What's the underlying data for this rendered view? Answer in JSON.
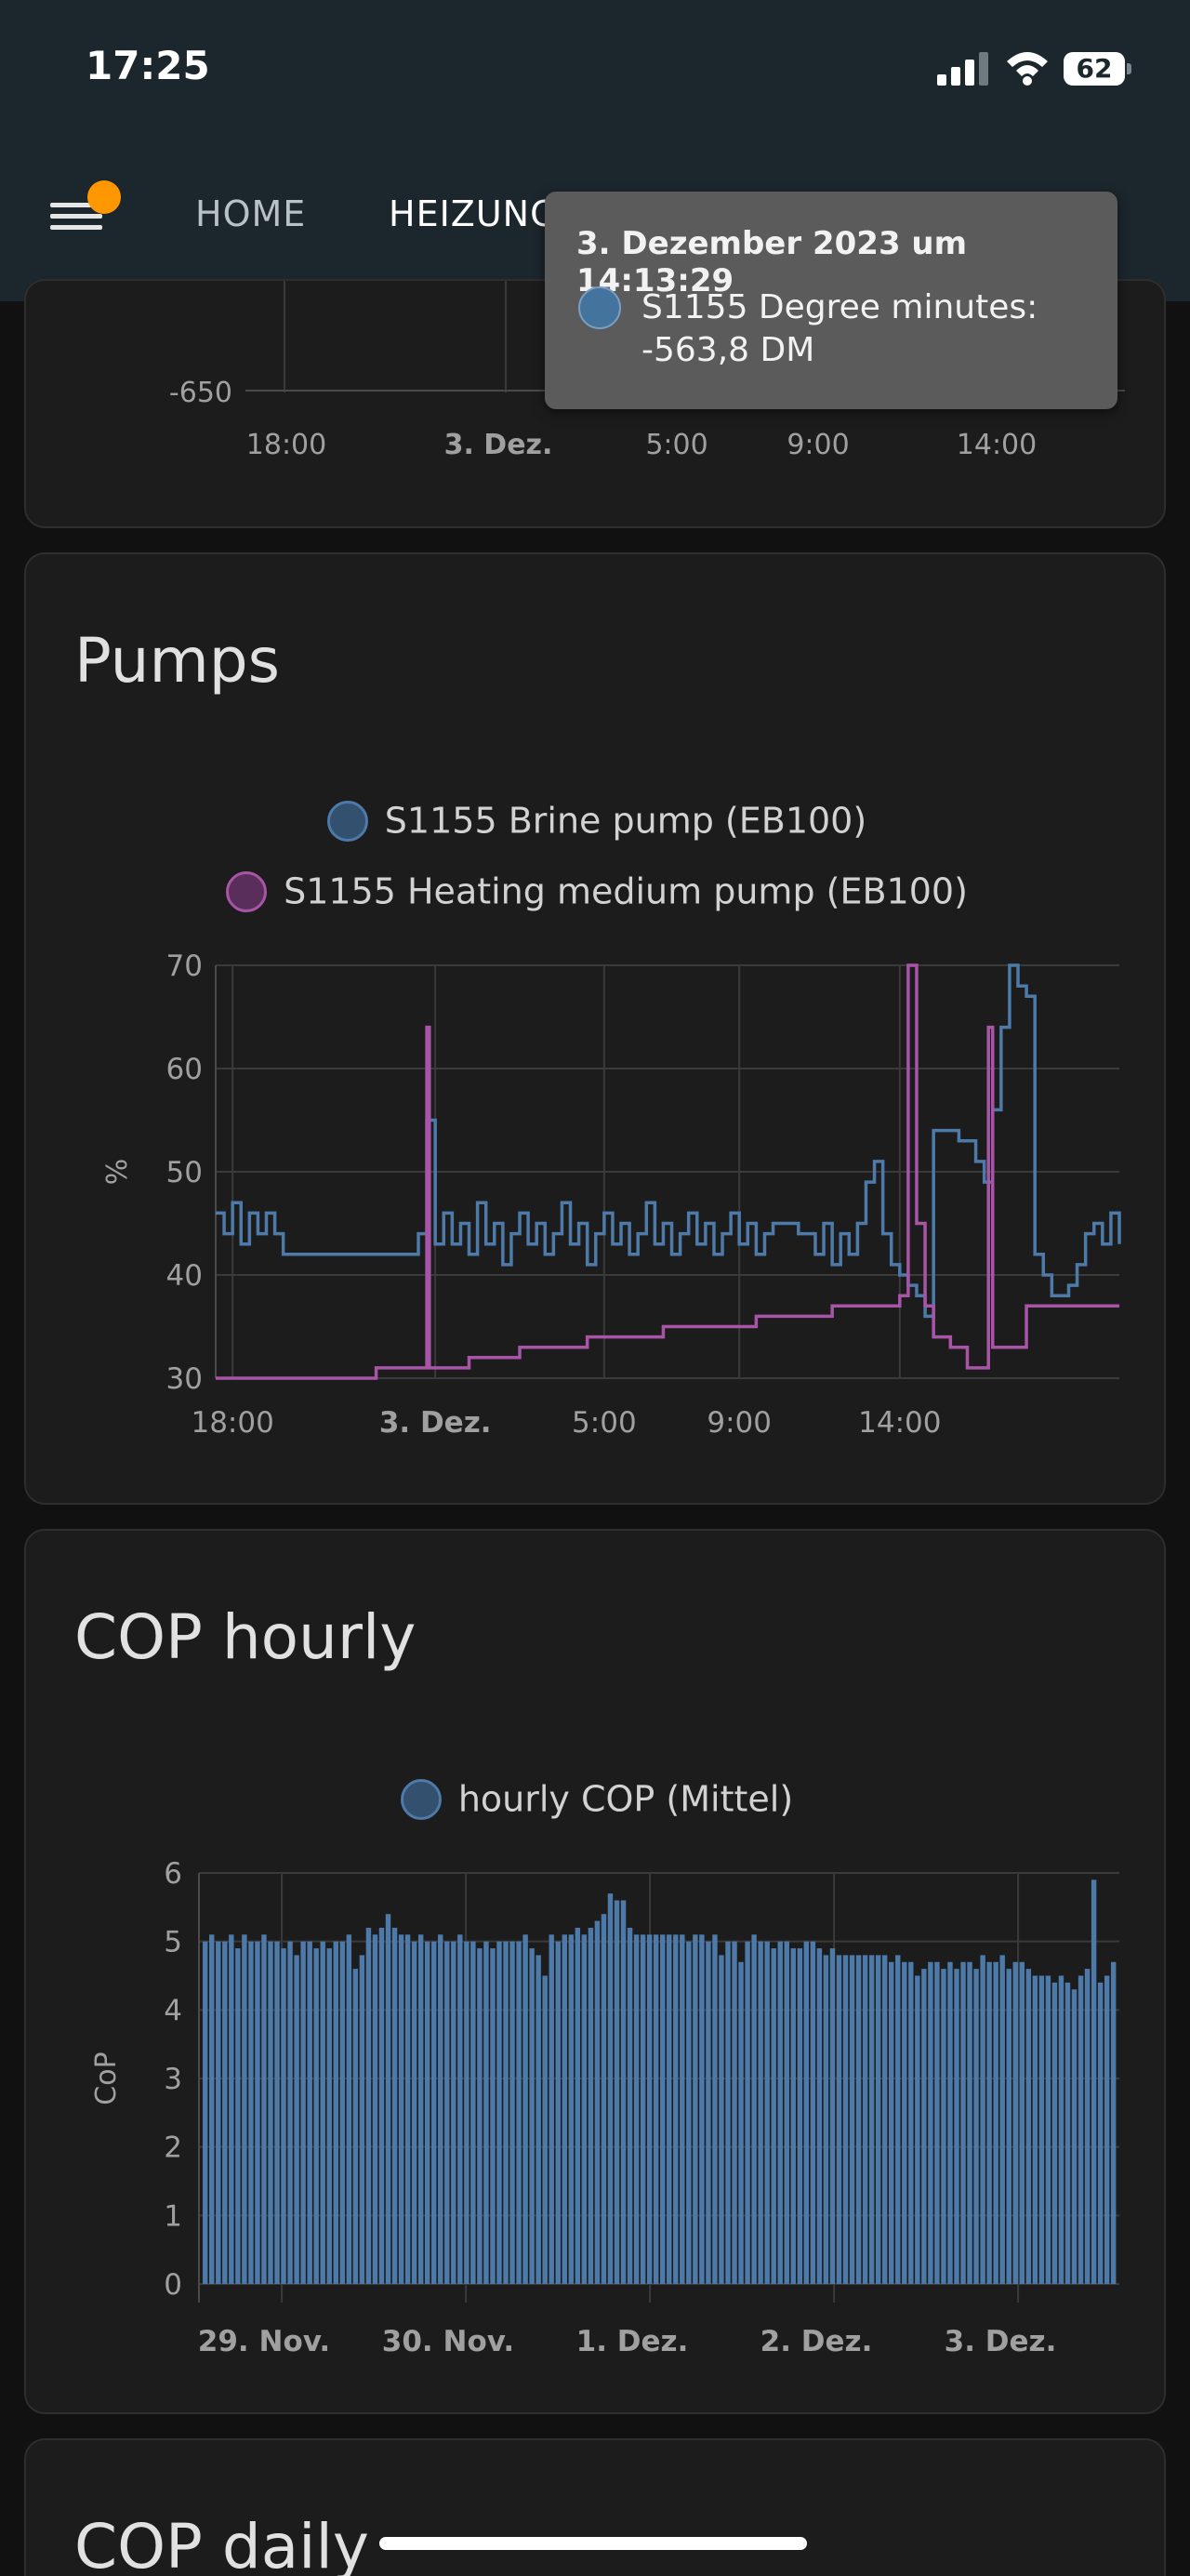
{
  "status": {
    "time": "17:25",
    "battery": "62"
  },
  "appbar": {
    "tabs": [
      {
        "label": "HOME"
      },
      {
        "label": "HEIZUNG"
      }
    ],
    "menu_badge_color": "#ff9800"
  },
  "colors": {
    "brine": "#4d7aa8",
    "heating": "#a855a8",
    "cop": "#4d7aa8",
    "card_bg": "#1c1c1c",
    "grid": "#3a3a3a"
  },
  "prev_card": {
    "y_tick": "-650",
    "x_ticks": [
      "18:00",
      "3. Dez.",
      "5:00",
      "9:00",
      "14:00"
    ]
  },
  "tooltip": {
    "title": "3. Dezember 2023 um 14:13:29",
    "series": "S1155 Degree minutes:",
    "value": "-563,8 DM"
  },
  "pumps_card": {
    "title": "Pumps"
  },
  "cop_hourly_card": {
    "title": "COP hourly"
  },
  "cop_daily_card": {
    "title": "COP daily"
  },
  "chart_data": [
    {
      "type": "line",
      "title": "Pumps",
      "ylabel": "%",
      "ylim": [
        30,
        70
      ],
      "y_ticks": [
        30,
        40,
        50,
        60,
        70
      ],
      "x_ticks": [
        "18:00",
        "3. Dez.",
        "5:00",
        "9:00",
        "14:00"
      ],
      "grid": true,
      "legend": "top-center",
      "series": [
        {
          "name": "S1155 Brine pump (EB100)",
          "points": [
            [
              0,
              46
            ],
            [
              1,
              44
            ],
            [
              2,
              47
            ],
            [
              3,
              43
            ],
            [
              4,
              46
            ],
            [
              5,
              44
            ],
            [
              6,
              46
            ],
            [
              7,
              44
            ],
            [
              8,
              42
            ],
            [
              20,
              42
            ],
            [
              24,
              44
            ],
            [
              25,
              55
            ],
            [
              26,
              43
            ],
            [
              27,
              46
            ],
            [
              28,
              43
            ],
            [
              29,
              45
            ],
            [
              30,
              42
            ],
            [
              31,
              47
            ],
            [
              32,
              43
            ],
            [
              33,
              45
            ],
            [
              34,
              41
            ],
            [
              35,
              44
            ],
            [
              36,
              46
            ],
            [
              37,
              43
            ],
            [
              38,
              45
            ],
            [
              39,
              42
            ],
            [
              40,
              44
            ],
            [
              41,
              47
            ],
            [
              42,
              43
            ],
            [
              43,
              45
            ],
            [
              44,
              41
            ],
            [
              45,
              44
            ],
            [
              46,
              46
            ],
            [
              47,
              43
            ],
            [
              48,
              45
            ],
            [
              49,
              42
            ],
            [
              50,
              44
            ],
            [
              51,
              47
            ],
            [
              52,
              43
            ],
            [
              53,
              45
            ],
            [
              54,
              42
            ],
            [
              55,
              44
            ],
            [
              56,
              46
            ],
            [
              57,
              43
            ],
            [
              58,
              45
            ],
            [
              59,
              42
            ],
            [
              60,
              44
            ],
            [
              61,
              46
            ],
            [
              62,
              43
            ],
            [
              63,
              45
            ],
            [
              64,
              42
            ],
            [
              65,
              44
            ],
            [
              66,
              45
            ],
            [
              69,
              44
            ],
            [
              71,
              42
            ],
            [
              72,
              45
            ],
            [
              73,
              41
            ],
            [
              74,
              44
            ],
            [
              75,
              42
            ],
            [
              76,
              45
            ],
            [
              77,
              49
            ],
            [
              78,
              51
            ],
            [
              79,
              44
            ],
            [
              80,
              41
            ],
            [
              81,
              40
            ],
            [
              82,
              39
            ],
            [
              83,
              38
            ],
            [
              84,
              36
            ],
            [
              85,
              54
            ],
            [
              88,
              53
            ],
            [
              90,
              51
            ],
            [
              91,
              49
            ],
            [
              92,
              56
            ],
            [
              93,
              64
            ],
            [
              94,
              70
            ],
            [
              95,
              68
            ],
            [
              96,
              67
            ],
            [
              97,
              42
            ],
            [
              98,
              40
            ],
            [
              99,
              38
            ],
            [
              101,
              39
            ],
            [
              102,
              41
            ],
            [
              103,
              44
            ],
            [
              104,
              45
            ],
            [
              105,
              43
            ],
            [
              106,
              46
            ],
            [
              107,
              43
            ]
          ]
        },
        {
          "name": "S1155 Heating medium pump (EB100)",
          "points": [
            [
              0,
              30
            ],
            [
              18,
              30
            ],
            [
              19,
              31
            ],
            [
              24,
              31
            ],
            [
              25,
              64
            ],
            [
              25.3,
              31
            ],
            [
              29,
              31
            ],
            [
              30,
              32
            ],
            [
              35,
              32
            ],
            [
              36,
              33
            ],
            [
              43,
              33
            ],
            [
              44,
              34
            ],
            [
              52,
              34
            ],
            [
              53,
              35
            ],
            [
              63,
              35
            ],
            [
              64,
              36
            ],
            [
              72,
              36
            ],
            [
              73,
              37
            ],
            [
              80,
              37
            ],
            [
              81,
              38
            ],
            [
              82,
              70
            ],
            [
              83,
              45
            ],
            [
              84,
              37
            ],
            [
              85,
              34
            ],
            [
              87,
              33
            ],
            [
              89,
              31
            ],
            [
              91,
              31
            ],
            [
              91.5,
              64
            ],
            [
              92,
              33
            ],
            [
              95,
              33
            ],
            [
              96,
              37
            ],
            [
              107,
              37
            ]
          ]
        }
      ]
    },
    {
      "type": "bar",
      "title": "COP hourly",
      "ylabel": "CoP",
      "ylim": [
        0,
        6
      ],
      "y_ticks": [
        0,
        1,
        2,
        3,
        4,
        5,
        6
      ],
      "x_ticks": [
        "29. Nov.",
        "30. Nov.",
        "1. Dez.",
        "2. Dez.",
        "3. Dez."
      ],
      "grid": true,
      "legend": "top-center",
      "series": [
        {
          "name": "hourly COP (Mittel)",
          "values": [
            5.0,
            5.1,
            5.0,
            5.0,
            5.1,
            4.9,
            5.1,
            5.0,
            5.0,
            5.1,
            5.0,
            5.0,
            4.9,
            5.0,
            4.8,
            5.0,
            5.0,
            4.9,
            5.0,
            4.9,
            5.0,
            5.0,
            5.1,
            4.6,
            4.8,
            5.2,
            5.1,
            5.2,
            5.4,
            5.2,
            5.1,
            5.1,
            5.0,
            5.1,
            5.0,
            5.0,
            5.1,
            5.0,
            5.0,
            5.1,
            5.0,
            5.0,
            4.9,
            5.0,
            4.9,
            5.0,
            5.0,
            5.0,
            5.0,
            5.1,
            4.9,
            4.8,
            4.5,
            5.1,
            5.0,
            5.1,
            5.1,
            5.2,
            5.1,
            5.2,
            5.3,
            5.4,
            5.7,
            5.6,
            5.6,
            5.2,
            5.1,
            5.1,
            5.1,
            5.1,
            5.1,
            5.1,
            5.1,
            5.1,
            5.0,
            5.1,
            5.1,
            5.0,
            5.1,
            4.8,
            5.0,
            5.0,
            4.7,
            5.0,
            5.1,
            5.0,
            5.0,
            4.9,
            5.0,
            5.0,
            4.9,
            4.9,
            5.0,
            5.0,
            4.9,
            4.8,
            4.9,
            4.8,
            4.8,
            4.8,
            4.8,
            4.8,
            4.8,
            4.8,
            4.8,
            4.7,
            4.8,
            4.7,
            4.7,
            4.5,
            4.6,
            4.7,
            4.7,
            4.6,
            4.7,
            4.6,
            4.7,
            4.7,
            4.6,
            4.8,
            4.7,
            4.7,
            4.8,
            4.6,
            4.7,
            4.7,
            4.6,
            4.5,
            4.5,
            4.5,
            4.4,
            4.5,
            4.4,
            4.3,
            4.5,
            4.6,
            5.9,
            4.4,
            4.5,
            4.7
          ]
        }
      ]
    }
  ]
}
